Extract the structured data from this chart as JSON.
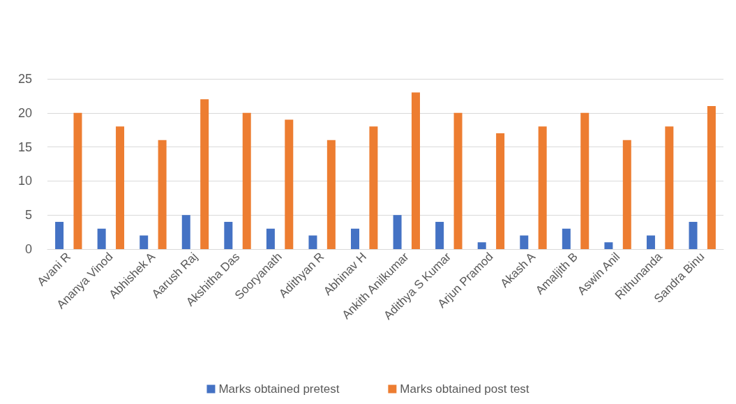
{
  "chart_data": {
    "type": "bar",
    "categories": [
      "Avani R",
      "Ananya Vinod",
      "Abhishek A",
      "Aarush Raj",
      "Akshitha Das",
      "Sooryanath",
      "Adithyan R",
      "Abhinav H",
      "Ankith Anilkumar",
      "Adithya S Kumar",
      "Arjun Pramod",
      "Akash A",
      "Amaljith B",
      "Aswin Anil",
      "Rithunanda",
      "Sandra Binu"
    ],
    "series": [
      {
        "name": "Marks obtained pretest",
        "color": "#4472c4",
        "values": [
          4,
          3,
          2,
          5,
          4,
          3,
          2,
          3,
          5,
          4,
          1,
          2,
          3,
          1,
          2,
          4
        ]
      },
      {
        "name": "Marks obtained post test",
        "color": "#ed7d31",
        "values": [
          20,
          18,
          16,
          22,
          20,
          19,
          16,
          18,
          23,
          20,
          17,
          18,
          20,
          16,
          18,
          21
        ]
      }
    ],
    "ylim": [
      0,
      25
    ],
    "yticks": [
      0,
      5,
      10,
      15,
      20,
      25
    ],
    "grid": "y",
    "legend": "bottom"
  }
}
